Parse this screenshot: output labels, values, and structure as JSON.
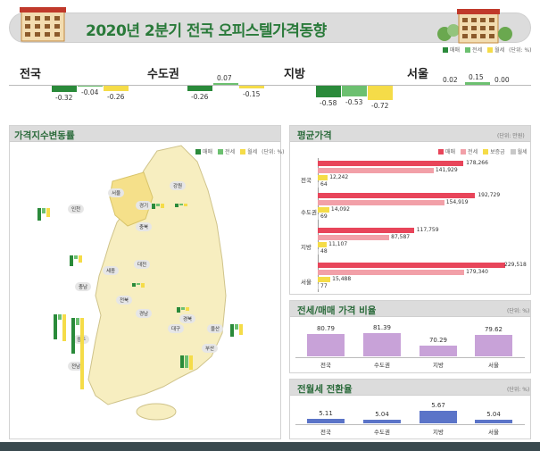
{
  "title": "2020년 2분기 전국 오피스텔가격동향",
  "colors": {
    "sale": "#2a8a3a",
    "jeonse": "#6cc070",
    "monthly": "#f5dc48",
    "sale_price": "#e8455a",
    "jeonse_price": "#f2a0a8",
    "deposit": "#f5dc48",
    "monthly_price": "#c8c8c8",
    "ratio": "#c8a2d8",
    "conversion": "#5b74c8",
    "title_green": "#2a7a3a"
  },
  "legends": {
    "top": {
      "items": [
        "매매",
        "전세",
        "월세"
      ],
      "unit": "(단위: %)"
    },
    "index": {
      "items": [
        "매매",
        "전세",
        "월세"
      ],
      "unit": "(단위: %)"
    },
    "price": {
      "items": [
        "매매",
        "전세",
        "보증금",
        "월세"
      ]
    }
  },
  "panels": {
    "index": {
      "title": "가격지수변동률"
    },
    "price": {
      "title": "평균가격",
      "unit": "(단위: 만원)"
    },
    "ratio": {
      "title": "전세/매매 가격 비율",
      "unit": "(단위: %)"
    },
    "conversion": {
      "title": "전월세 전환율",
      "unit": "(단위: %)"
    }
  },
  "map": {
    "cities": [
      "서울",
      "인천",
      "경기",
      "강원",
      "충북",
      "세종",
      "대전",
      "충남",
      "경북",
      "대구",
      "울산",
      "부산",
      "경남",
      "전북",
      "광주",
      "전남"
    ]
  },
  "chart_data": [
    {
      "id": "index_change",
      "type": "bar",
      "categories": [
        "전국",
        "수도권",
        "지방",
        "서울"
      ],
      "series": [
        {
          "name": "매매",
          "values": [
            -0.32,
            -0.26,
            -0.58,
            0.02
          ]
        },
        {
          "name": "전세",
          "values": [
            -0.04,
            0.07,
            -0.53,
            0.15
          ]
        },
        {
          "name": "월세",
          "values": [
            -0.26,
            -0.15,
            -0.72,
            0.0
          ]
        }
      ],
      "value_labels": [
        [
          "-0.32",
          "-0.04",
          "-0.26"
        ],
        [
          "-0.26",
          "0.07",
          "-0.15"
        ],
        [
          "-0.58",
          "-0.53",
          "-0.72"
        ],
        [
          "0.02",
          "0.15",
          "0.00"
        ]
      ]
    },
    {
      "id": "avg_price",
      "type": "bar",
      "orientation": "horizontal",
      "categories": [
        "전국",
        "수도권",
        "지방",
        "서울"
      ],
      "series": [
        {
          "name": "매매",
          "values": [
            178266,
            192729,
            117759,
            229518
          ]
        },
        {
          "name": "전세",
          "values": [
            141929,
            154919,
            87587,
            179340
          ]
        },
        {
          "name": "보증금",
          "values": [
            12242,
            14092,
            11107,
            15488
          ]
        },
        {
          "name": "월세",
          "values": [
            64,
            69,
            48,
            77
          ]
        }
      ],
      "value_labels": [
        [
          "178,266",
          "141,929",
          "12,242",
          "64"
        ],
        [
          "192,729",
          "154,919",
          "14,092",
          "69"
        ],
        [
          "117,759",
          "87,587",
          "11,107",
          "48"
        ],
        [
          "229,518",
          "179,340",
          "15,488",
          "77"
        ]
      ]
    },
    {
      "id": "jeonse_sale_ratio",
      "type": "bar",
      "categories": [
        "전국",
        "수도권",
        "지방",
        "서울"
      ],
      "values": [
        80.79,
        81.39,
        70.29,
        79.62
      ],
      "value_labels": [
        "80.79",
        "81.39",
        "70.29",
        "79.62"
      ]
    },
    {
      "id": "conversion_rate",
      "type": "bar",
      "categories": [
        "전국",
        "수도권",
        "지방",
        "서울"
      ],
      "values": [
        5.11,
        5.04,
        5.67,
        5.04
      ],
      "value_labels": [
        "5.11",
        "5.04",
        "5.67",
        "5.04"
      ]
    }
  ]
}
